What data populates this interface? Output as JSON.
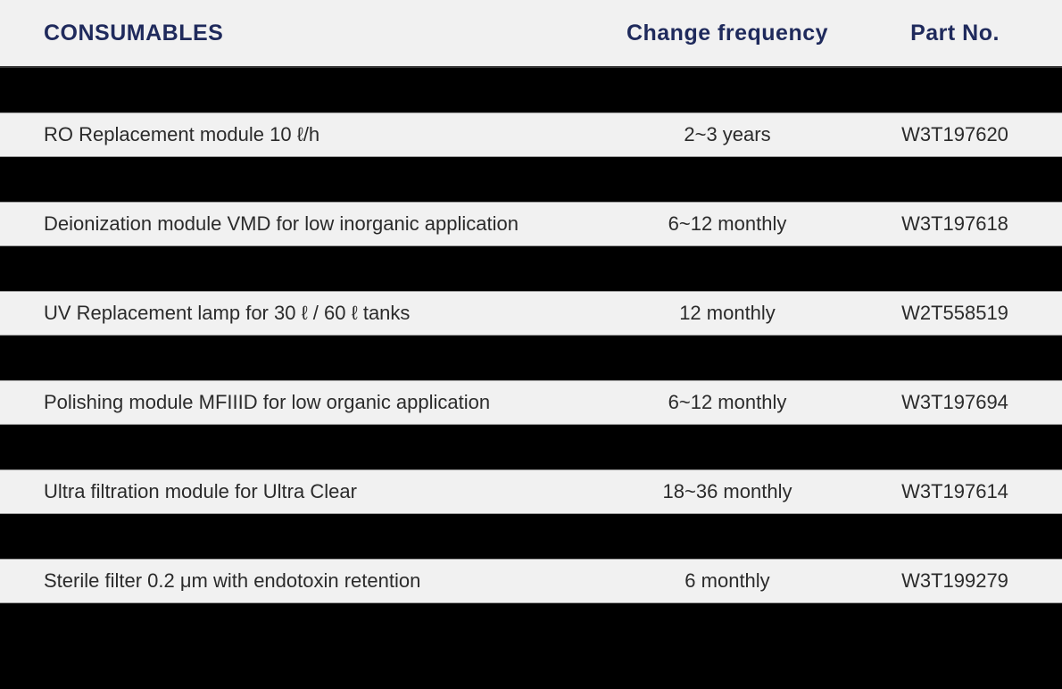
{
  "table": {
    "title": "CONSUMABLES",
    "columns": {
      "consumables": "CONSUMABLES",
      "change_frequency": "Change frequency",
      "part_no": "Part No."
    },
    "rows": [
      {
        "name": "RO Replacement module 10 ℓ/h",
        "frequency": "2~3 years",
        "part_no": "W3T197620"
      },
      {
        "name": "Deionization module VMD for low inorganic application",
        "frequency": "6~12 monthly",
        "part_no": "W3T197618"
      },
      {
        "name": "UV Replacement lamp for 30 ℓ / 60 ℓ tanks",
        "frequency": "12 monthly",
        "part_no": "W2T558519"
      },
      {
        "name": "Polishing module MFIIID for low organic application",
        "frequency": "6~12 monthly",
        "part_no": "W3T197694"
      },
      {
        "name": "Ultra filtration module for Ultra Clear",
        "frequency": "18~36 monthly",
        "part_no": "W3T197614"
      },
      {
        "name": "Sterile filter 0.2 μm with endotoxin retention",
        "frequency": "6 monthly",
        "part_no": "W3T199279"
      }
    ],
    "colors": {
      "header_text": "#1f2a5c",
      "row_background": "#f1f1f1",
      "divider_band": "#000000",
      "row_text": "#2b2b2b",
      "separator_line": "#9b9b9b"
    }
  }
}
